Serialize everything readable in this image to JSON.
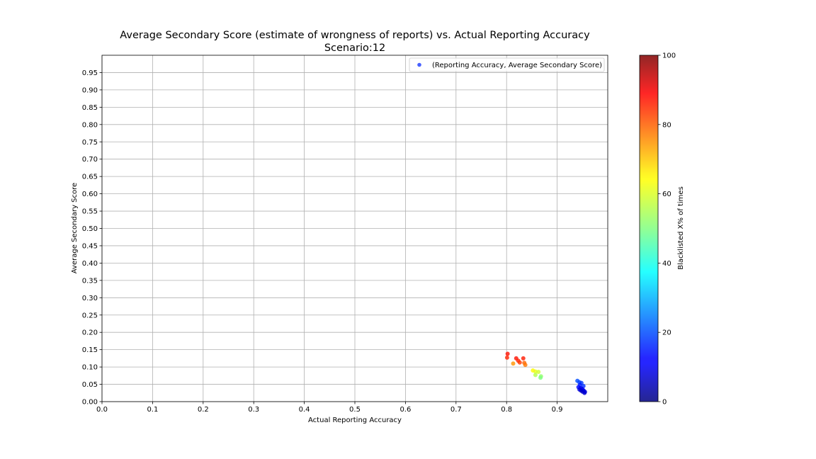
{
  "chart_data": {
    "type": "scatter",
    "title": "Average Secondary Score (estimate of wrongness of reports) vs. Actual Reporting Accuracy",
    "subtitle": "Scenario:12",
    "xlabel": "Actual Reporting Accuracy",
    "ylabel": "Average Secondary Score",
    "xlim": [
      0.0,
      1.0
    ],
    "ylim": [
      0.0,
      1.0
    ],
    "xticks": [
      "0.0",
      "0.1",
      "0.2",
      "0.3",
      "0.4",
      "0.5",
      "0.6",
      "0.7",
      "0.8",
      "0.9"
    ],
    "yticks": [
      "0.00",
      "0.05",
      "0.10",
      "0.15",
      "0.20",
      "0.25",
      "0.30",
      "0.35",
      "0.40",
      "0.45",
      "0.50",
      "0.55",
      "0.60",
      "0.65",
      "0.70",
      "0.75",
      "0.80",
      "0.85",
      "0.90",
      "0.95"
    ],
    "grid": true,
    "legend": {
      "position": "top-right",
      "entries": [
        "(Reporting Accuracy, Average Secondary Score)"
      ]
    },
    "colorbar": {
      "label": "Blacklisted X% of times",
      "range": [
        0,
        100
      ],
      "ticks": [
        "0",
        "20",
        "40",
        "60",
        "80",
        "100"
      ],
      "colormap": "jet"
    },
    "points": [
      {
        "x": 0.802,
        "y": 0.138,
        "c": 86
      },
      {
        "x": 0.801,
        "y": 0.127,
        "c": 84
      },
      {
        "x": 0.819,
        "y": 0.125,
        "c": 86
      },
      {
        "x": 0.823,
        "y": 0.118,
        "c": 84
      },
      {
        "x": 0.826,
        "y": 0.113,
        "c": 82
      },
      {
        "x": 0.833,
        "y": 0.125,
        "c": 85
      },
      {
        "x": 0.813,
        "y": 0.11,
        "c": 73
      },
      {
        "x": 0.835,
        "y": 0.112,
        "c": 78
      },
      {
        "x": 0.837,
        "y": 0.106,
        "c": 76
      },
      {
        "x": 0.852,
        "y": 0.09,
        "c": 63
      },
      {
        "x": 0.857,
        "y": 0.087,
        "c": 60
      },
      {
        "x": 0.863,
        "y": 0.086,
        "c": 58
      },
      {
        "x": 0.857,
        "y": 0.077,
        "c": 55
      },
      {
        "x": 0.868,
        "y": 0.073,
        "c": 52
      },
      {
        "x": 0.867,
        "y": 0.069,
        "c": 50
      },
      {
        "x": 0.94,
        "y": 0.06,
        "c": 20
      },
      {
        "x": 0.944,
        "y": 0.056,
        "c": 19
      },
      {
        "x": 0.948,
        "y": 0.054,
        "c": 18
      },
      {
        "x": 0.945,
        "y": 0.048,
        "c": 15
      },
      {
        "x": 0.952,
        "y": 0.045,
        "c": 17
      },
      {
        "x": 0.942,
        "y": 0.042,
        "c": 13
      },
      {
        "x": 0.946,
        "y": 0.039,
        "c": 11
      },
      {
        "x": 0.949,
        "y": 0.037,
        "c": 10
      },
      {
        "x": 0.944,
        "y": 0.035,
        "c": 9
      },
      {
        "x": 0.951,
        "y": 0.034,
        "c": 12
      },
      {
        "x": 0.947,
        "y": 0.032,
        "c": 8
      },
      {
        "x": 0.953,
        "y": 0.031,
        "c": 10
      },
      {
        "x": 0.95,
        "y": 0.029,
        "c": 7
      },
      {
        "x": 0.955,
        "y": 0.028,
        "c": 9
      },
      {
        "x": 0.954,
        "y": 0.025,
        "c": 8
      }
    ]
  }
}
